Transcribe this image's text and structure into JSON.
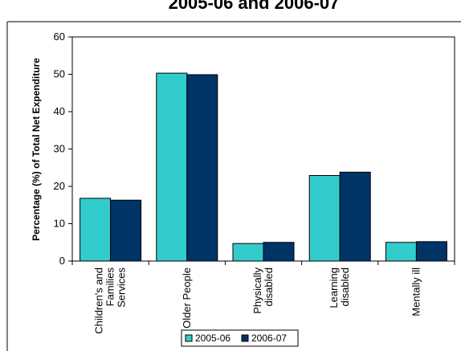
{
  "chart_data": {
    "type": "bar",
    "title": "2005-06 and 2006-07",
    "xlabel": "",
    "ylabel": "Percentage (%) of Total Net Expenditure",
    "ylim": [
      0,
      60
    ],
    "yticks": [
      0,
      10,
      20,
      30,
      40,
      50,
      60
    ],
    "categories": [
      [
        "Children's and",
        "Families",
        "Services"
      ],
      [
        "Older People"
      ],
      [
        "Physically",
        "disabled"
      ],
      [
        "Learning",
        "disabled"
      ],
      [
        "Mentally ill"
      ]
    ],
    "series": [
      {
        "name": "2005-06",
        "color": "#33CCCC",
        "values": [
          16.8,
          50.3,
          4.7,
          22.9,
          5.0
        ]
      },
      {
        "name": "2006-07",
        "color": "#003366",
        "values": [
          16.3,
          49.9,
          5.0,
          23.8,
          5.2
        ]
      }
    ],
    "grid": false,
    "legend": "bottom-center"
  }
}
